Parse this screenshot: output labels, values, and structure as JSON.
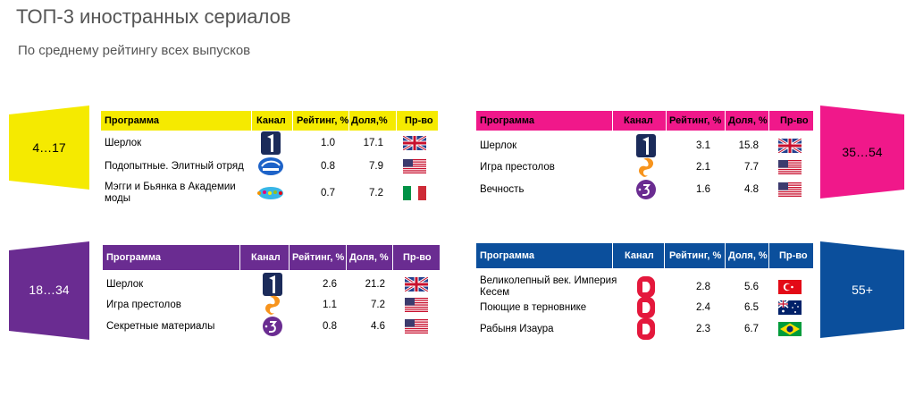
{
  "title": "ТОП-3 иностранных сериалов",
  "subtitle": "По среднему рейтингу всех выпусков",
  "panels": [
    {
      "audience": "4…17",
      "header": [
        "Программа",
        "Канал",
        "Рейтинг, %",
        "Доля,%",
        "Пр-во"
      ],
      "rows": [
        {
          "program": "Шерлок",
          "rating": "1.0",
          "share": "17.1"
        },
        {
          "program": "Подопытные. Элитный отряд",
          "rating": "0.8",
          "share": "7.9"
        },
        {
          "program": "Мэгги и Бьянка в Академии моды",
          "rating": "0.7",
          "share": "7.2"
        }
      ]
    },
    {
      "audience": "35…54",
      "header": [
        "Программа",
        "Канал",
        "Рейтинг, %",
        "Доля, %",
        "Пр-во"
      ],
      "rows": [
        {
          "program": "Шерлок",
          "rating": "3.1",
          "share": "15.8"
        },
        {
          "program": "Игра престолов",
          "rating": "2.1",
          "share": "7.7"
        },
        {
          "program": "Вечность",
          "rating": "1.6",
          "share": "4.8"
        }
      ]
    },
    {
      "audience": "18…34",
      "header": [
        "Программа",
        "Канал",
        "Рейтинг, %",
        "Доля, %",
        "Пр-во"
      ],
      "rows": [
        {
          "program": "Шерлок",
          "rating": "2.6",
          "share": "21.2"
        },
        {
          "program": "Игра престолов",
          "rating": "1.1",
          "share": "7.2"
        },
        {
          "program": "Секретные материалы",
          "rating": "0.8",
          "share": "4.6"
        }
      ]
    },
    {
      "audience": "55+",
      "header": [
        "Программа",
        "Канал",
        "Рейтинг, %",
        "Доля, %",
        "Пр-во"
      ],
      "rows": [
        {
          "program": "Великолепный век. Империя Кесем",
          "rating": "2.8",
          "share": "5.6"
        },
        {
          "program": "Поющие в терновнике",
          "rating": "2.4",
          "share": "6.5"
        },
        {
          "program": "Рабыня Изаура",
          "rating": "2.3",
          "share": "6.7"
        }
      ]
    }
  ]
}
